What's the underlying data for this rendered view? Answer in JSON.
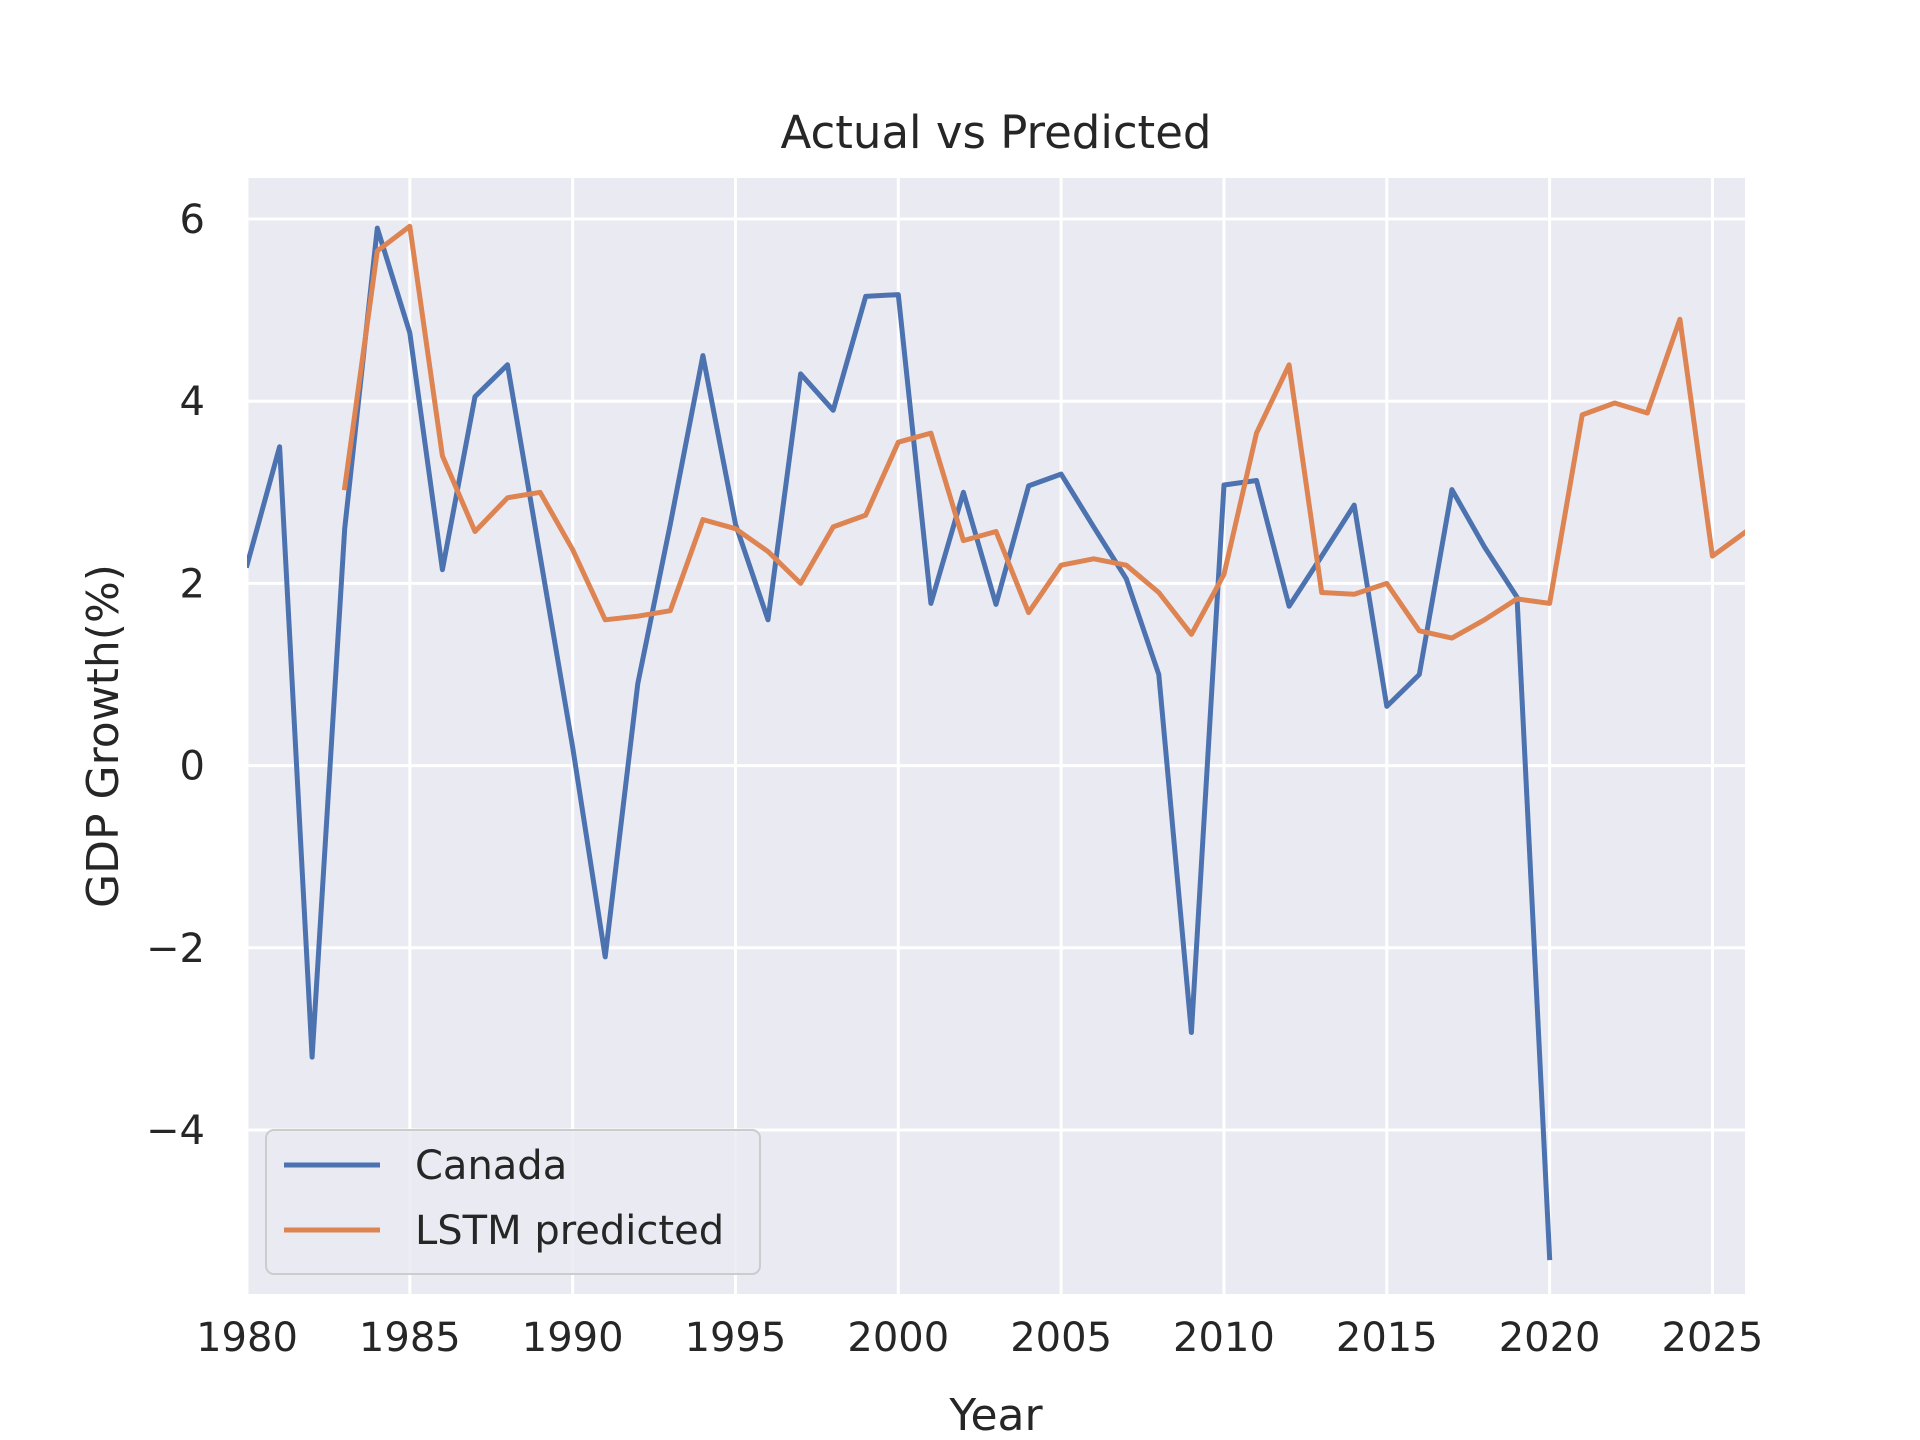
{
  "chart_data": {
    "type": "line",
    "title": "Actual vs Predicted",
    "xlabel": "Year",
    "ylabel": "GDP Growth(%)",
    "xlim": [
      1980,
      2026
    ],
    "ylim": [
      -5.8,
      6.45
    ],
    "xticks": [
      1980,
      1985,
      1990,
      1995,
      2000,
      2005,
      2010,
      2015,
      2020,
      2025
    ],
    "yticks": [
      -4,
      -2,
      0,
      2,
      4,
      6
    ],
    "ytick_labels": [
      "−4",
      "−2",
      "0",
      "2",
      "4",
      "6"
    ],
    "grid": true,
    "legend_position": "lower-left",
    "series": [
      {
        "name": "Canada",
        "color": "#4c72b0",
        "x": [
          1980,
          1981,
          1982,
          1983,
          1984,
          1985,
          1986,
          1987,
          1988,
          1989,
          1990,
          1991,
          1992,
          1993,
          1994,
          1995,
          1996,
          1997,
          1998,
          1999,
          2000,
          2001,
          2002,
          2003,
          2004,
          2005,
          2006,
          2007,
          2008,
          2009,
          2010,
          2011,
          2012,
          2013,
          2014,
          2015,
          2016,
          2017,
          2018,
          2019,
          2020
        ],
        "values": [
          2.2,
          3.5,
          -3.2,
          2.6,
          5.9,
          4.75,
          2.15,
          4.05,
          4.4,
          2.3,
          0.2,
          -2.1,
          0.9,
          2.65,
          4.5,
          2.65,
          1.6,
          4.3,
          3.9,
          5.15,
          5.17,
          1.78,
          3.0,
          1.77,
          3.07,
          3.2,
          2.62,
          2.05,
          1.0,
          -2.93,
          3.08,
          3.13,
          1.75,
          2.3,
          2.86,
          0.65,
          1.0,
          3.03,
          2.4,
          1.85,
          -5.4
        ]
      },
      {
        "name": "LSTM predicted",
        "color": "#dd8452",
        "x": [
          1983,
          1984,
          1985,
          1986,
          1987,
          1988,
          1989,
          1990,
          1991,
          1992,
          1993,
          1994,
          1995,
          1996,
          1997,
          1998,
          1999,
          2000,
          2001,
          2002,
          2003,
          2004,
          2005,
          2006,
          2007,
          2008,
          2009,
          2010,
          2011,
          2012,
          2013,
          2014,
          2015,
          2016,
          2017,
          2018,
          2019,
          2020,
          2021,
          2022,
          2023,
          2024,
          2025,
          2026
        ],
        "values": [
          3.05,
          5.65,
          5.92,
          3.4,
          2.57,
          2.94,
          3.0,
          2.37,
          1.6,
          1.64,
          1.7,
          2.7,
          2.6,
          2.35,
          2.0,
          2.62,
          2.75,
          3.55,
          3.65,
          2.47,
          2.57,
          1.68,
          2.2,
          2.27,
          2.2,
          1.9,
          1.44,
          2.1,
          3.65,
          4.4,
          1.9,
          1.88,
          2.0,
          1.48,
          1.4,
          1.6,
          1.83,
          1.78,
          3.85,
          3.98,
          3.87,
          4.9,
          2.3,
          2.56
        ]
      }
    ]
  },
  "colors": {
    "plot_background": "#eaeaf2",
    "grid": "#ffffff",
    "text": "#262626"
  }
}
